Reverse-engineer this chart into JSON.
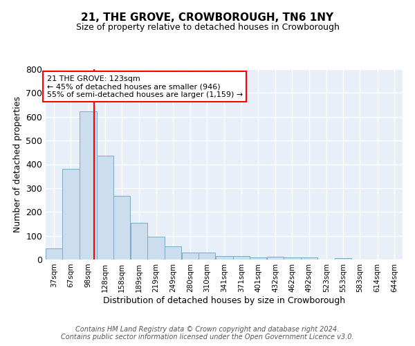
{
  "title": "21, THE GROVE, CROWBOROUGH, TN6 1NY",
  "subtitle": "Size of property relative to detached houses in Crowborough",
  "xlabel": "Distribution of detached houses by size in Crowborough",
  "ylabel": "Number of detached properties",
  "bar_values": [
    47,
    380,
    622,
    435,
    268,
    153,
    95,
    55,
    30,
    30,
    15,
    15,
    10,
    13,
    10,
    8,
    0,
    7,
    0,
    0
  ],
  "bin_labels": [
    "37sqm",
    "67sqm",
    "98sqm",
    "128sqm",
    "158sqm",
    "189sqm",
    "219sqm",
    "249sqm",
    "280sqm",
    "310sqm",
    "341sqm",
    "371sqm",
    "401sqm",
    "432sqm",
    "462sqm",
    "492sqm",
    "523sqm",
    "553sqm",
    "583sqm",
    "614sqm",
    "644sqm"
  ],
  "bin_edges": [
    37,
    67,
    98,
    128,
    158,
    189,
    219,
    249,
    280,
    310,
    341,
    371,
    401,
    432,
    462,
    492,
    523,
    553,
    583,
    614,
    644
  ],
  "bar_color": "#ccdded",
  "bar_edge_color": "#7aaac8",
  "vline_x": 123,
  "vline_color": "red",
  "ylim": [
    0,
    800
  ],
  "yticks": [
    0,
    100,
    200,
    300,
    400,
    500,
    600,
    700,
    800
  ],
  "annotation_text": "21 THE GROVE: 123sqm\n← 45% of detached houses are smaller (946)\n55% of semi-detached houses are larger (1,159) →",
  "annotation_box_color": "white",
  "annotation_box_edge_color": "red",
  "footer_text": "Contains HM Land Registry data © Crown copyright and database right 2024.\nContains public sector information licensed under the Open Government Licence v3.0.",
  "background_color": "#e8eff8",
  "fig_background_color": "white"
}
